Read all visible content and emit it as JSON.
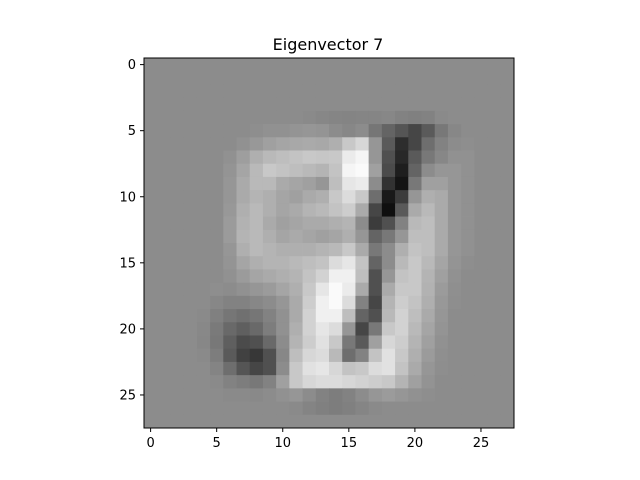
{
  "chart_data": {
    "type": "heatmap",
    "title": "Eigenvector 7",
    "xlabel": "",
    "ylabel": "",
    "rows": 28,
    "cols": 28,
    "colormap": "gray",
    "xlim": [
      -0.5,
      27.5
    ],
    "ylim": [
      27.5,
      -0.5
    ],
    "x_ticks": [
      0,
      5,
      10,
      15,
      20,
      25
    ],
    "y_ticks": [
      0,
      5,
      10,
      15,
      20,
      25
    ],
    "x_tick_labels": [
      "0",
      "5",
      "10",
      "15",
      "20",
      "25"
    ],
    "y_tick_labels": [
      "0",
      "5",
      "10",
      "15",
      "20",
      "25"
    ],
    "grid": false,
    "description_of_values": "grayscale intensity 0 (black) to 255 (white); background about 140",
    "values": [
      [
        140,
        140,
        140,
        140,
        140,
        140,
        140,
        140,
        140,
        140,
        140,
        140,
        140,
        140,
        140,
        140,
        140,
        140,
        140,
        140,
        140,
        140,
        140,
        140,
        140,
        140,
        140,
        140
      ],
      [
        140,
        140,
        140,
        140,
        140,
        140,
        140,
        140,
        140,
        140,
        140,
        140,
        140,
        140,
        140,
        140,
        140,
        140,
        140,
        140,
        140,
        140,
        140,
        140,
        140,
        140,
        140,
        140
      ],
      [
        140,
        140,
        140,
        140,
        140,
        140,
        140,
        140,
        140,
        140,
        140,
        140,
        140,
        140,
        140,
        140,
        140,
        140,
        140,
        140,
        140,
        140,
        140,
        140,
        140,
        140,
        140,
        140
      ],
      [
        140,
        140,
        140,
        140,
        140,
        140,
        140,
        140,
        140,
        140,
        140,
        140,
        140,
        140,
        140,
        140,
        140,
        140,
        140,
        140,
        140,
        140,
        140,
        140,
        140,
        140,
        140,
        140
      ],
      [
        140,
        140,
        140,
        140,
        140,
        140,
        140,
        140,
        140,
        140,
        140,
        140,
        138,
        135,
        133,
        132,
        133,
        133,
        135,
        130,
        128,
        130,
        138,
        140,
        140,
        140,
        140,
        140
      ],
      [
        140,
        140,
        140,
        140,
        140,
        140,
        140,
        140,
        142,
        145,
        145,
        148,
        150,
        148,
        140,
        135,
        140,
        118,
        100,
        85,
        70,
        90,
        120,
        135,
        140,
        140,
        140,
        140
      ],
      [
        140,
        140,
        140,
        140,
        140,
        140,
        140,
        145,
        152,
        160,
        165,
        168,
        170,
        168,
        175,
        200,
        215,
        150,
        90,
        45,
        70,
        110,
        130,
        140,
        142,
        140,
        140,
        140
      ],
      [
        140,
        140,
        140,
        140,
        140,
        140,
        145,
        158,
        175,
        185,
        190,
        195,
        200,
        198,
        200,
        235,
        245,
        150,
        80,
        40,
        90,
        120,
        135,
        145,
        145,
        140,
        140,
        140
      ],
      [
        140,
        140,
        140,
        140,
        140,
        140,
        148,
        165,
        185,
        200,
        195,
        190,
        185,
        180,
        195,
        245,
        250,
        160,
        75,
        30,
        100,
        140,
        150,
        150,
        145,
        140,
        140,
        140
      ],
      [
        140,
        140,
        140,
        140,
        140,
        140,
        150,
        170,
        185,
        185,
        170,
        165,
        160,
        150,
        190,
        230,
        235,
        140,
        50,
        20,
        120,
        160,
        160,
        150,
        145,
        140,
        140,
        140
      ],
      [
        140,
        140,
        140,
        140,
        140,
        140,
        150,
        170,
        180,
        175,
        165,
        160,
        170,
        175,
        200,
        220,
        200,
        110,
        25,
        60,
        150,
        175,
        170,
        150,
        145,
        140,
        140,
        140
      ],
      [
        140,
        140,
        140,
        140,
        140,
        140,
        152,
        175,
        185,
        175,
        165,
        170,
        180,
        185,
        195,
        205,
        170,
        70,
        15,
        90,
        170,
        185,
        170,
        150,
        145,
        140,
        140,
        140
      ],
      [
        140,
        140,
        140,
        140,
        140,
        140,
        155,
        178,
        185,
        170,
        160,
        165,
        170,
        170,
        175,
        180,
        140,
        60,
        80,
        130,
        185,
        190,
        170,
        150,
        145,
        140,
        140,
        140
      ],
      [
        140,
        140,
        140,
        140,
        140,
        140,
        155,
        180,
        185,
        175,
        165,
        170,
        165,
        160,
        165,
        175,
        150,
        100,
        120,
        150,
        190,
        190,
        170,
        150,
        145,
        140,
        140,
        140
      ],
      [
        140,
        140,
        140,
        140,
        140,
        140,
        150,
        175,
        185,
        180,
        175,
        175,
        175,
        180,
        185,
        200,
        170,
        120,
        140,
        175,
        195,
        190,
        170,
        150,
        145,
        140,
        140,
        140
      ],
      [
        140,
        140,
        140,
        140,
        140,
        140,
        148,
        165,
        175,
        180,
        180,
        185,
        190,
        195,
        220,
        230,
        195,
        100,
        140,
        185,
        200,
        185,
        165,
        148,
        142,
        140,
        140,
        140
      ],
      [
        140,
        140,
        140,
        140,
        140,
        140,
        145,
        155,
        165,
        170,
        175,
        180,
        195,
        210,
        240,
        240,
        190,
        80,
        150,
        195,
        200,
        180,
        160,
        145,
        140,
        140,
        140,
        140
      ],
      [
        140,
        140,
        140,
        140,
        140,
        142,
        140,
        145,
        150,
        155,
        165,
        175,
        200,
        230,
        250,
        235,
        170,
        80,
        170,
        200,
        200,
        178,
        155,
        143,
        140,
        140,
        140,
        140
      ],
      [
        140,
        140,
        140,
        140,
        140,
        135,
        130,
        130,
        135,
        140,
        150,
        170,
        205,
        240,
        250,
        220,
        130,
        70,
        180,
        205,
        195,
        175,
        152,
        142,
        140,
        140,
        140,
        140
      ],
      [
        140,
        140,
        140,
        140,
        138,
        128,
        118,
        112,
        118,
        130,
        145,
        170,
        210,
        240,
        240,
        190,
        100,
        80,
        185,
        210,
        190,
        170,
        150,
        140,
        140,
        140,
        140,
        140
      ],
      [
        140,
        140,
        140,
        140,
        136,
        122,
        105,
        95,
        105,
        125,
        145,
        175,
        210,
        230,
        220,
        150,
        70,
        120,
        200,
        210,
        185,
        165,
        148,
        140,
        140,
        140,
        140,
        140
      ],
      [
        140,
        140,
        140,
        140,
        135,
        120,
        95,
        75,
        80,
        105,
        140,
        180,
        205,
        225,
        200,
        120,
        90,
        160,
        215,
        205,
        180,
        160,
        145,
        140,
        140,
        140,
        140,
        140
      ],
      [
        140,
        140,
        140,
        140,
        138,
        125,
        90,
        65,
        55,
        80,
        135,
        190,
        215,
        220,
        185,
        110,
        130,
        195,
        225,
        200,
        175,
        155,
        143,
        140,
        140,
        140,
        140,
        140
      ],
      [
        140,
        140,
        140,
        140,
        140,
        132,
        110,
        85,
        70,
        80,
        140,
        200,
        225,
        230,
        215,
        195,
        200,
        220,
        225,
        195,
        170,
        150,
        142,
        140,
        140,
        140,
        140,
        140
      ],
      [
        140,
        140,
        140,
        140,
        140,
        138,
        130,
        125,
        120,
        130,
        160,
        200,
        215,
        220,
        220,
        215,
        210,
        205,
        200,
        180,
        160,
        147,
        140,
        140,
        140,
        140,
        140,
        140
      ],
      [
        140,
        140,
        140,
        140,
        140,
        140,
        138,
        138,
        137,
        140,
        145,
        150,
        140,
        130,
        125,
        130,
        140,
        150,
        155,
        150,
        145,
        142,
        140,
        140,
        140,
        140,
        140,
        140
      ],
      [
        140,
        140,
        140,
        140,
        140,
        140,
        140,
        140,
        140,
        140,
        140,
        138,
        132,
        128,
        125,
        128,
        133,
        138,
        140,
        140,
        140,
        140,
        140,
        140,
        140,
        140,
        140,
        140
      ],
      [
        140,
        140,
        140,
        140,
        140,
        140,
        140,
        140,
        140,
        140,
        140,
        140,
        140,
        140,
        140,
        140,
        140,
        140,
        140,
        140,
        140,
        140,
        140,
        140,
        140,
        140,
        140,
        140
      ]
    ]
  }
}
